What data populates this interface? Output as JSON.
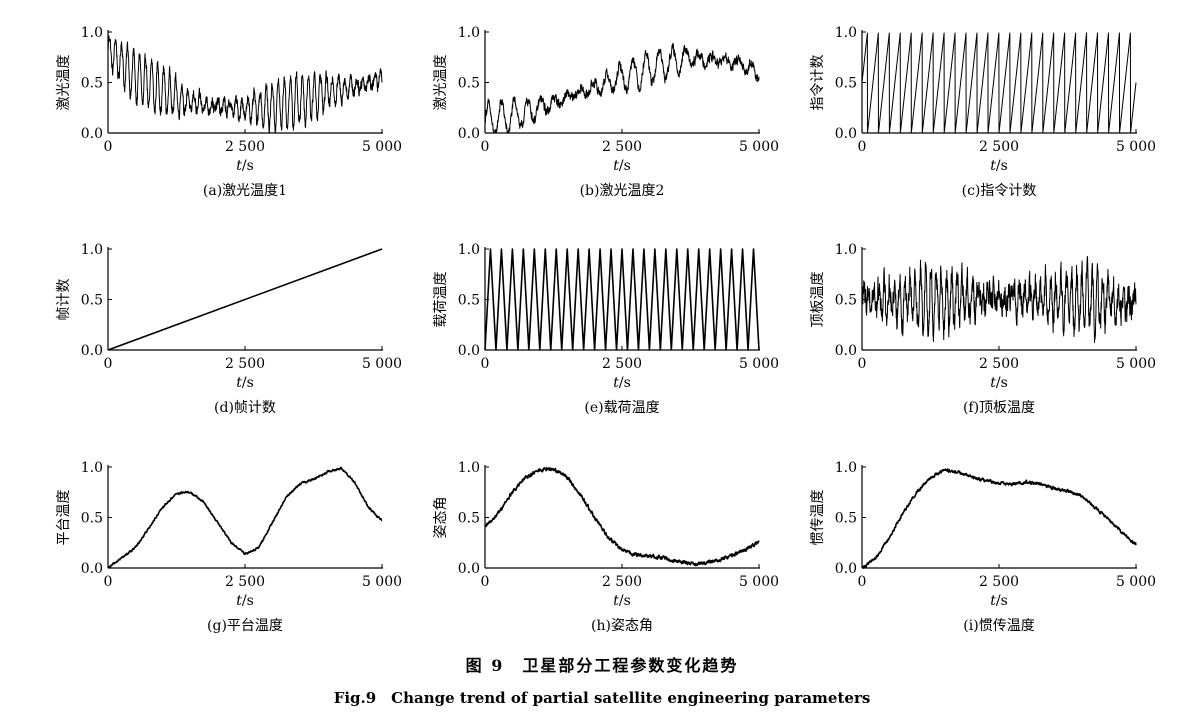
{
  "figure": {
    "title_cn": "图 9　卫星部分工程参数变化趋势",
    "title_en": "Fig.9　Change trend of partial satellite engineering parameters"
  },
  "chart_data": [
    {
      "type": "line",
      "caption": "(a)激光温度1",
      "ylabel": "激光温度",
      "xlabel_var": "t",
      "xlabel_unit": "/s",
      "xlim": [
        0,
        5000
      ],
      "ylim": [
        0,
        1
      ],
      "xticks": [
        "0",
        "2 500",
        "5 000"
      ],
      "yticks": [
        "0.0",
        "0.5",
        "1.0"
      ],
      "x": [
        0,
        250,
        500,
        750,
        1000,
        1250,
        1500,
        1750,
        2000,
        2250,
        2500,
        2750,
        3000,
        3250,
        3500,
        3750,
        4000,
        4250,
        4500,
        4750,
        5000
      ],
      "y": [
        0.82,
        0.7,
        0.55,
        0.48,
        0.42,
        0.36,
        0.3,
        0.28,
        0.26,
        0.25,
        0.24,
        0.25,
        0.27,
        0.3,
        0.33,
        0.37,
        0.41,
        0.44,
        0.47,
        0.5,
        0.54
      ],
      "osc_period": 110,
      "osc_amp": 0.2,
      "noise": 0.05
    },
    {
      "type": "line",
      "caption": "(b)激光温度2",
      "ylabel": "激光温度",
      "xlabel_var": "t",
      "xlabel_unit": "/s",
      "xlim": [
        0,
        5000
      ],
      "ylim": [
        0,
        1
      ],
      "xticks": [
        "0",
        "2 500",
        "5 000"
      ],
      "yticks": [
        "0.0",
        "0.5",
        "1.0"
      ],
      "x": [
        0,
        250,
        500,
        750,
        1000,
        1250,
        1500,
        1750,
        2000,
        2250,
        2500,
        2750,
        3000,
        3250,
        3500,
        3750,
        4000,
        4250,
        4500,
        4750,
        5000
      ],
      "y": [
        0.12,
        0.14,
        0.17,
        0.2,
        0.25,
        0.3,
        0.35,
        0.4,
        0.45,
        0.5,
        0.55,
        0.6,
        0.64,
        0.68,
        0.72,
        0.74,
        0.73,
        0.72,
        0.7,
        0.66,
        0.6
      ],
      "osc_period": 240,
      "osc_amp": 0.13,
      "noise": 0.04
    },
    {
      "type": "line",
      "caption": "(c)指令计数",
      "ylabel": "指令计数",
      "xlabel_var": "t",
      "xlabel_unit": "/s",
      "xlim": [
        0,
        5000
      ],
      "ylim": [
        0,
        1
      ],
      "xticks": [
        "0",
        "2 500",
        "5 000"
      ],
      "yticks": [
        "0.0",
        "0.5",
        "1.0"
      ],
      "x": [
        0,
        5000
      ],
      "y": [
        0,
        1
      ],
      "sawtooth_period": 200,
      "sawtooth_start": 0.5
    },
    {
      "type": "line",
      "caption": "(d)帧计数",
      "ylabel": "帧计数",
      "xlabel_var": "t",
      "xlabel_unit": "/s",
      "xlim": [
        0,
        5000
      ],
      "ylim": [
        0,
        1
      ],
      "xticks": [
        "0",
        "2 500",
        "5 000"
      ],
      "yticks": [
        "0.0",
        "0.5",
        "1.0"
      ],
      "x": [
        0,
        5000
      ],
      "y": [
        0,
        1
      ]
    },
    {
      "type": "line",
      "caption": "(e)载荷温度",
      "ylabel": "载荷温度",
      "xlabel_var": "t",
      "xlabel_unit": "/s",
      "xlim": [
        0,
        5000
      ],
      "ylim": [
        0,
        1
      ],
      "xticks": [
        "0",
        "2 500",
        "5 000"
      ],
      "yticks": [
        "0.0",
        "0.5",
        "1.0"
      ],
      "x": [
        0,
        5000
      ],
      "y": [
        0.5,
        0.5
      ],
      "triangle_period": 200,
      "triangle_min": 0.0,
      "triangle_max": 1.0
    },
    {
      "type": "line",
      "caption": "(f)顶板温度",
      "ylabel": "顶板温度",
      "xlabel_var": "t",
      "xlabel_unit": "/s",
      "xlim": [
        0,
        5000
      ],
      "ylim": [
        0,
        1
      ],
      "xticks": [
        "0",
        "2 500",
        "5 000"
      ],
      "yticks": [
        "0.0",
        "0.5",
        "1.0"
      ],
      "x": [
        0,
        1250,
        2500,
        3750,
        5000
      ],
      "y": [
        0.52,
        0.5,
        0.52,
        0.48,
        0.47
      ],
      "osc_period": 95,
      "osc_amp": 0.22,
      "noise": 0.12
    },
    {
      "type": "line",
      "caption": "(g)平台温度",
      "ylabel": "平台温度",
      "xlabel_var": "t",
      "xlabel_unit": "/s",
      "xlim": [
        0,
        5000
      ],
      "ylim": [
        0,
        1
      ],
      "xticks": [
        "0",
        "2 500",
        "5 000"
      ],
      "yticks": [
        "0.0",
        "0.5",
        "1.0"
      ],
      "x": [
        0,
        250,
        500,
        750,
        1000,
        1250,
        1500,
        1750,
        2000,
        2250,
        2500,
        2750,
        3000,
        3250,
        3500,
        3750,
        4000,
        4250,
        4500,
        4750,
        5000
      ],
      "y": [
        0.0,
        0.1,
        0.2,
        0.4,
        0.6,
        0.74,
        0.75,
        0.65,
        0.45,
        0.25,
        0.14,
        0.2,
        0.45,
        0.7,
        0.83,
        0.88,
        0.95,
        0.99,
        0.85,
        0.6,
        0.47
      ],
      "noise": 0.008
    },
    {
      "type": "line",
      "caption": "(h)姿态角",
      "ylabel": "姿态角",
      "xlabel_var": "t",
      "xlabel_unit": "/s",
      "xlim": [
        0,
        5000
      ],
      "ylim": [
        0,
        1
      ],
      "xticks": [
        "0",
        "2 500",
        "5 000"
      ],
      "yticks": [
        "0.0",
        "0.5",
        "1.0"
      ],
      "x": [
        0,
        250,
        500,
        750,
        1000,
        1250,
        1500,
        1750,
        2000,
        2250,
        2500,
        2750,
        3000,
        3250,
        3500,
        3750,
        4000,
        4250,
        4500,
        4750,
        5000
      ],
      "y": [
        0.4,
        0.55,
        0.75,
        0.9,
        0.97,
        0.98,
        0.9,
        0.72,
        0.5,
        0.3,
        0.18,
        0.13,
        0.12,
        0.1,
        0.07,
        0.04,
        0.05,
        0.08,
        0.12,
        0.18,
        0.26
      ],
      "noise": 0.015
    },
    {
      "type": "line",
      "caption": "(i)惯传温度",
      "ylabel": "惯传温度",
      "xlabel_var": "t",
      "xlabel_unit": "/s",
      "xlim": [
        0,
        5000
      ],
      "ylim": [
        0,
        1
      ],
      "xticks": [
        "0",
        "2 500",
        "5 000"
      ],
      "yticks": [
        "0.0",
        "0.5",
        "1.0"
      ],
      "x": [
        0,
        250,
        500,
        750,
        1000,
        1250,
        1500,
        1750,
        2000,
        2250,
        2500,
        2750,
        3000,
        3250,
        3500,
        3750,
        4000,
        4250,
        4500,
        4750,
        5000
      ],
      "y": [
        0.0,
        0.1,
        0.3,
        0.55,
        0.75,
        0.9,
        0.97,
        0.95,
        0.9,
        0.87,
        0.84,
        0.83,
        0.85,
        0.83,
        0.79,
        0.76,
        0.72,
        0.6,
        0.48,
        0.35,
        0.23
      ],
      "noise": 0.012
    }
  ]
}
